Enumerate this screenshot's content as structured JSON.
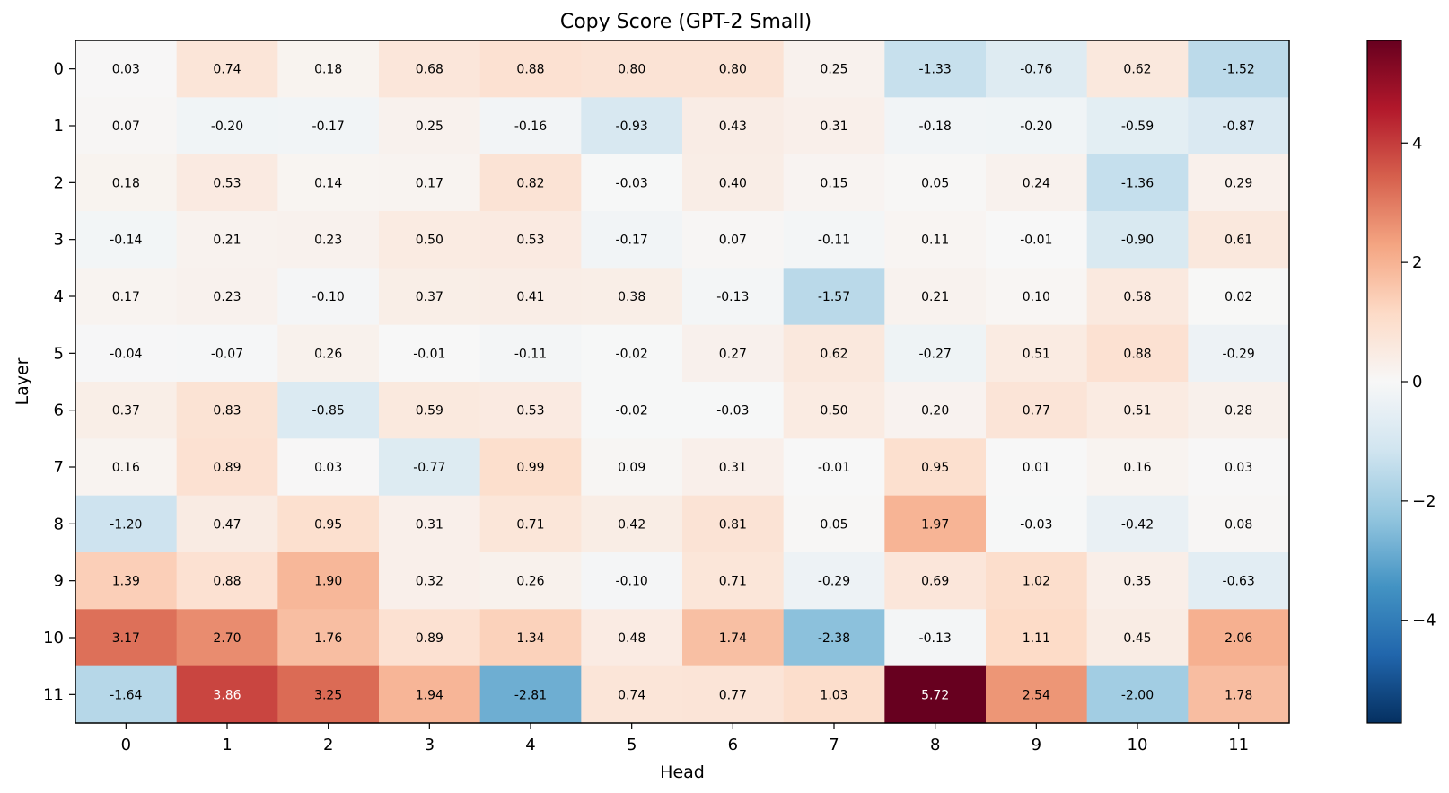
{
  "chart_data": {
    "type": "heatmap",
    "title": "Copy Score (GPT-2 Small)",
    "xlabel": "Head",
    "ylabel": "Layer",
    "x_categories": [
      "0",
      "1",
      "2",
      "3",
      "4",
      "5",
      "6",
      "7",
      "8",
      "9",
      "10",
      "11"
    ],
    "y_categories": [
      "0",
      "1",
      "2",
      "3",
      "4",
      "5",
      "6",
      "7",
      "8",
      "9",
      "10",
      "11"
    ],
    "values": [
      [
        0.03,
        0.74,
        0.18,
        0.68,
        0.88,
        0.8,
        0.8,
        0.25,
        -1.33,
        -0.76,
        0.62,
        -1.52
      ],
      [
        0.07,
        -0.2,
        -0.17,
        0.25,
        -0.16,
        -0.93,
        0.43,
        0.31,
        -0.18,
        -0.2,
        -0.59,
        -0.87
      ],
      [
        0.18,
        0.53,
        0.14,
        0.17,
        0.82,
        -0.03,
        0.4,
        0.15,
        0.05,
        0.24,
        -1.36,
        0.29
      ],
      [
        -0.14,
        0.21,
        0.23,
        0.5,
        0.53,
        -0.17,
        0.07,
        -0.11,
        0.11,
        -0.01,
        -0.9,
        0.61
      ],
      [
        0.17,
        0.23,
        -0.1,
        0.37,
        0.41,
        0.38,
        -0.13,
        -1.57,
        0.21,
        0.1,
        0.58,
        0.02
      ],
      [
        -0.04,
        -0.07,
        0.26,
        -0.01,
        -0.11,
        -0.02,
        0.27,
        0.62,
        -0.27,
        0.51,
        0.88,
        -0.29
      ],
      [
        0.37,
        0.83,
        -0.85,
        0.59,
        0.53,
        -0.02,
        -0.03,
        0.5,
        0.2,
        0.77,
        0.51,
        0.28
      ],
      [
        0.16,
        0.89,
        0.03,
        -0.77,
        0.99,
        0.09,
        0.31,
        -0.01,
        0.95,
        0.01,
        0.16,
        0.03
      ],
      [
        -1.2,
        0.47,
        0.95,
        0.31,
        0.71,
        0.42,
        0.81,
        0.05,
        1.97,
        -0.03,
        -0.42,
        0.08
      ],
      [
        1.39,
        0.88,
        1.9,
        0.32,
        0.26,
        -0.1,
        0.71,
        -0.29,
        0.69,
        1.02,
        0.35,
        -0.63
      ],
      [
        3.17,
        2.7,
        1.76,
        0.89,
        1.34,
        0.48,
        1.74,
        -2.38,
        -0.13,
        1.11,
        0.45,
        2.06
      ],
      [
        -1.64,
        3.86,
        3.25,
        1.94,
        -2.81,
        0.74,
        0.77,
        1.03,
        5.72,
        2.54,
        -2.0,
        1.78
      ]
    ],
    "value_range": [
      -5.72,
      5.72
    ],
    "colormap": "RdBu_r",
    "colorbar_ticks": [
      -4,
      -2,
      0,
      2,
      4
    ],
    "colorbar_tick_labels": [
      "−4",
      "−2",
      "0",
      "2",
      "4"
    ]
  }
}
